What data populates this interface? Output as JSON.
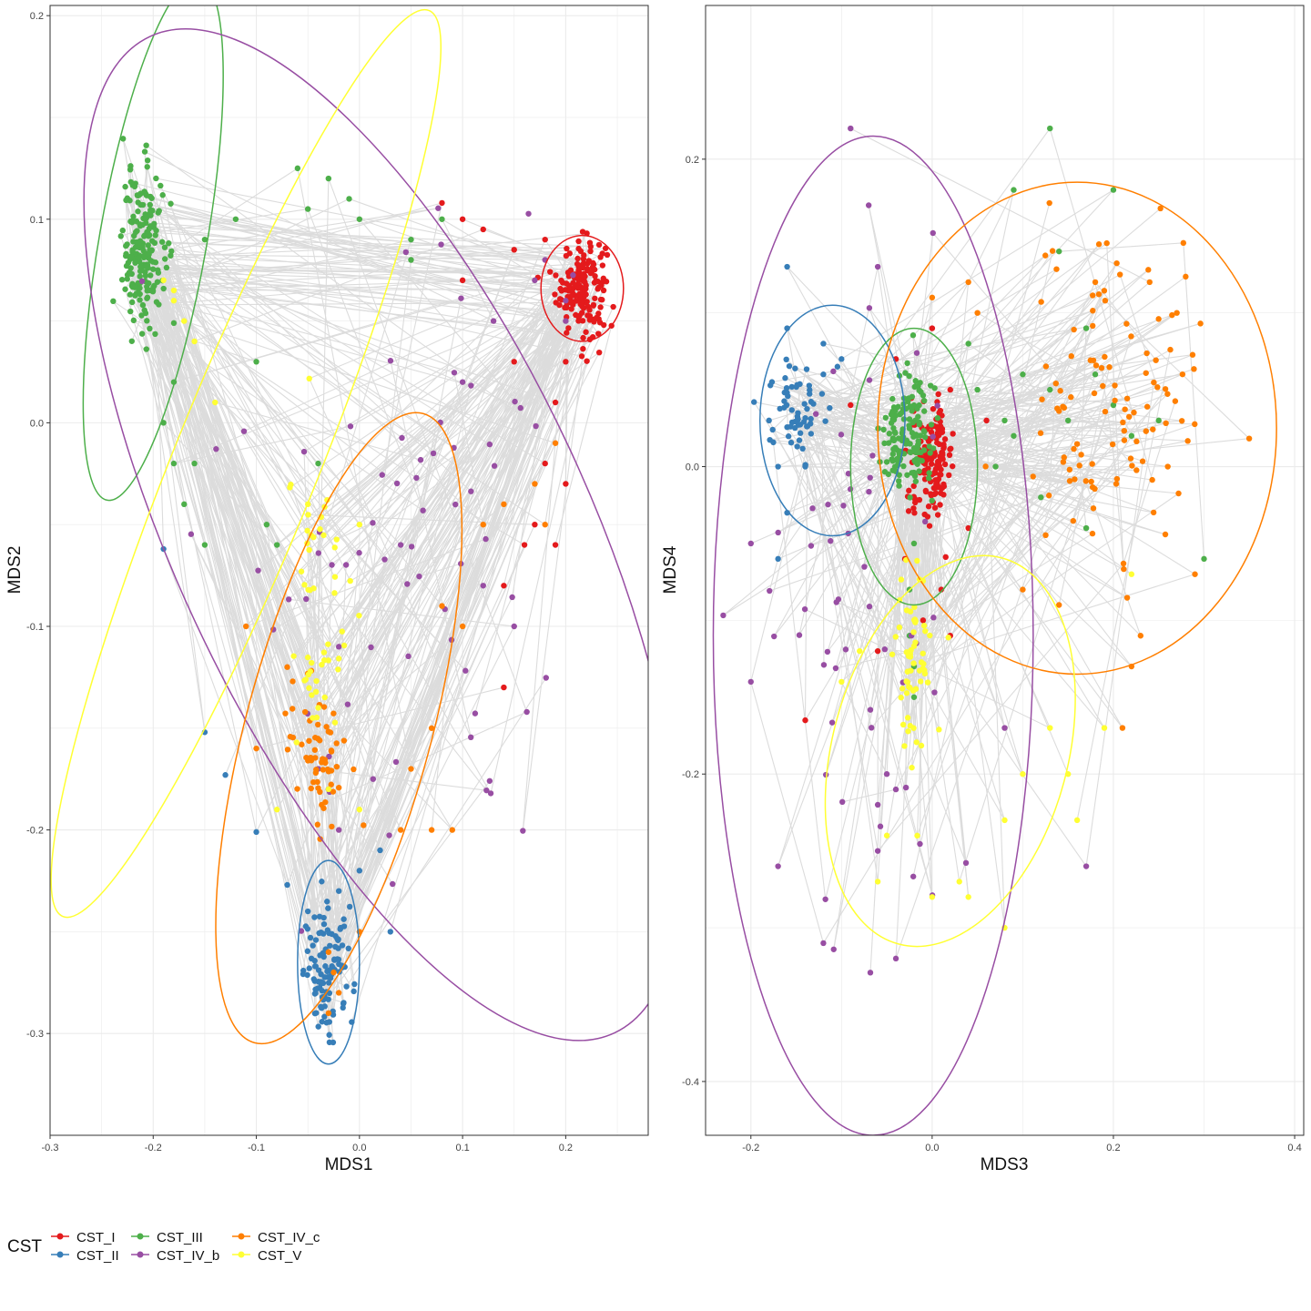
{
  "legend": {
    "title": "CST",
    "entries": [
      {
        "label": "CST_I",
        "color": "#E41A1C"
      },
      {
        "label": "CST_II",
        "color": "#377EB8"
      },
      {
        "label": "CST_III",
        "color": "#4DAF4A"
      },
      {
        "label": "CST_IV_b",
        "color": "#984EA3"
      },
      {
        "label": "CST_IV_c",
        "color": "#FF7F00"
      },
      {
        "label": "CST_V",
        "color": "#FFFF33"
      }
    ]
  },
  "chart_data": [
    {
      "type": "scatter",
      "xlabel": "MDS1",
      "ylabel": "MDS2",
      "xlim": [
        -0.3,
        0.28
      ],
      "ylim": [
        -0.35,
        0.205
      ],
      "xticks": [
        -0.3,
        -0.2,
        -0.1,
        0.0,
        0.1,
        0.2
      ],
      "xtick_labels": [
        "-0.3",
        "-0.2",
        "-0.1",
        "0.0",
        "0.1",
        "0.2"
      ],
      "yticks": [
        -0.3,
        -0.2,
        -0.1,
        0.0,
        0.1,
        0.2
      ],
      "ytick_labels": [
        "-0.3",
        "-0.2",
        "-0.1",
        "0.0",
        "0.1",
        "0.2"
      ],
      "grid": true,
      "connecting_lines": "gray lines link sequential samples",
      "series": [
        {
          "name": "CST_I",
          "center": [
            0.215,
            0.067
          ],
          "spread": [
            0.012,
            0.012
          ],
          "count": 170,
          "extra_points": [
            [
              0.18,
              0.09
            ],
            [
              0.15,
              0.085
            ],
            [
              0.12,
              0.095
            ],
            [
              0.1,
              0.1
            ],
            [
              0.2,
              0.03
            ],
            [
              0.19,
              0.01
            ],
            [
              0.18,
              -0.02
            ],
            [
              0.17,
              -0.05
            ],
            [
              0.15,
              0.03
            ],
            [
              0.2,
              -0.03
            ],
            [
              0.14,
              -0.08
            ],
            [
              0.19,
              -0.06
            ],
            [
              0.1,
              0.07
            ],
            [
              0.14,
              -0.13
            ],
            [
              0.16,
              -0.06
            ],
            [
              0.08,
              0.108
            ]
          ],
          "ellipse": {
            "center": [
              0.216,
              0.066
            ],
            "rx": 0.04,
            "ry": 0.026,
            "angle": 0
          }
        },
        {
          "name": "CST_II",
          "center": [
            -0.03,
            -0.27
          ],
          "spread": [
            0.012,
            0.015
          ],
          "count": 110,
          "extra_points": [
            [
              -0.05,
              -0.24
            ],
            [
              -0.02,
              -0.23
            ],
            [
              0.0,
              -0.22
            ],
            [
              0.03,
              -0.25
            ],
            [
              -0.07,
              -0.227
            ],
            [
              -0.15,
              -0.152
            ],
            [
              -0.13,
              -0.173
            ],
            [
              -0.19,
              -0.062
            ],
            [
              -0.1,
              -0.201
            ],
            [
              0.02,
              -0.21
            ]
          ],
          "ellipse": {
            "center": [
              -0.03,
              -0.265
            ],
            "rx": 0.03,
            "ry": 0.05,
            "angle": 0
          }
        },
        {
          "name": "CST_III",
          "center": [
            -0.21,
            0.085
          ],
          "spread": [
            0.01,
            0.02
          ],
          "count": 190,
          "extra_points": [
            [
              -0.18,
              0.02
            ],
            [
              -0.19,
              0.0
            ],
            [
              -0.18,
              -0.02
            ],
            [
              -0.17,
              -0.04
            ],
            [
              -0.15,
              0.09
            ],
            [
              -0.12,
              0.1
            ],
            [
              -0.05,
              0.105
            ],
            [
              0.0,
              0.1
            ],
            [
              0.05,
              0.09
            ],
            [
              -0.03,
              0.12
            ],
            [
              -0.06,
              0.125
            ],
            [
              -0.1,
              0.03
            ],
            [
              -0.09,
              -0.05
            ],
            [
              -0.08,
              -0.06
            ],
            [
              -0.15,
              -0.06
            ],
            [
              -0.16,
              -0.02
            ],
            [
              -0.04,
              -0.02
            ],
            [
              0.05,
              0.08
            ],
            [
              -0.01,
              0.11
            ],
            [
              0.08,
              0.1
            ]
          ],
          "ellipse": {
            "center": [
              -0.2,
              0.09
            ],
            "rx": 0.052,
            "ry": 0.13,
            "angle": -10
          }
        },
        {
          "name": "CST_IV_b",
          "center": [
            0.05,
            -0.05
          ],
          "spread": [
            0.09,
            0.09
          ],
          "count": 70,
          "extra_points": [
            [
              0.2,
              0.06
            ],
            [
              0.17,
              0.07
            ],
            [
              0.1,
              0.02
            ],
            [
              -0.03,
              -0.18
            ],
            [
              -0.02,
              -0.2
            ],
            [
              -0.04,
              -0.17
            ],
            [
              -0.02,
              -0.11
            ],
            [
              0.04,
              -0.06
            ],
            [
              0.12,
              -0.08
            ],
            [
              0.15,
              -0.1
            ],
            [
              0.2,
              0.05
            ],
            [
              0.18,
              0.08
            ],
            [
              0.13,
              0.05
            ]
          ],
          "ellipse": {
            "center": [
              0.022,
              -0.055
            ],
            "rx": 0.2,
            "ry": 0.27,
            "angle": 25
          }
        },
        {
          "name": "CST_IV_c",
          "center": [
            -0.04,
            -0.16
          ],
          "spread": [
            0.015,
            0.018
          ],
          "count": 60,
          "extra_points": [
            [
              -0.03,
              -0.26
            ],
            [
              -0.02,
              -0.28
            ],
            [
              -0.03,
              -0.29
            ],
            [
              0.0,
              -0.25
            ],
            [
              -0.025,
              -0.27
            ],
            [
              -0.1,
              -0.16
            ],
            [
              -0.07,
              -0.12
            ],
            [
              0.05,
              -0.17
            ],
            [
              0.08,
              -0.09
            ],
            [
              0.1,
              -0.1
            ],
            [
              0.12,
              -0.05
            ],
            [
              0.14,
              -0.04
            ],
            [
              0.17,
              -0.03
            ],
            [
              0.18,
              -0.05
            ],
            [
              0.19,
              -0.01
            ],
            [
              0.07,
              -0.15
            ],
            [
              -0.11,
              -0.1
            ],
            [
              0.04,
              -0.2
            ],
            [
              0.09,
              -0.2
            ],
            [
              0.07,
              -0.2
            ]
          ],
          "ellipse": {
            "center": [
              -0.02,
              -0.15
            ],
            "rx": 0.09,
            "ry": 0.16,
            "angle": -15
          }
        },
        {
          "name": "CST_V",
          "center": [
            -0.04,
            -0.09
          ],
          "spread": [
            0.015,
            0.04
          ],
          "count": 50,
          "extra_points": [
            [
              -0.19,
              0.07
            ],
            [
              -0.18,
              0.065
            ],
            [
              -0.17,
              0.05
            ],
            [
              -0.16,
              0.04
            ],
            [
              -0.18,
              0.06
            ],
            [
              -0.14,
              0.01
            ],
            [
              -0.08,
              -0.19
            ],
            [
              0.0,
              -0.19
            ],
            [
              -0.03,
              -0.18
            ],
            [
              -0.04,
              -0.14
            ],
            [
              0.0,
              -0.05
            ],
            [
              -0.05,
              -0.04
            ]
          ],
          "ellipse": {
            "center": [
              -0.11,
              -0.02
            ],
            "rx": 0.07,
            "ry": 0.24,
            "angle": -22
          }
        }
      ]
    },
    {
      "type": "scatter",
      "xlabel": "MDS3",
      "ylabel": "MDS4",
      "xlim": [
        -0.25,
        0.41
      ],
      "ylim": [
        -0.435,
        0.3
      ],
      "xticks": [
        -0.2,
        0.0,
        0.2,
        0.4
      ],
      "xtick_labels": [
        "-0.2",
        "0.0",
        "0.2",
        "0.4"
      ],
      "yticks": [
        -0.4,
        -0.2,
        0.0,
        0.2
      ],
      "ytick_labels": [
        "-0.4",
        "-0.2",
        "0.0",
        "0.2"
      ],
      "grid": true,
      "connecting_lines": "gray lines link sequential samples",
      "series": [
        {
          "name": "CST_I",
          "center": [
            0.0,
            0.005
          ],
          "spread": [
            0.012,
            0.018
          ],
          "count": 150,
          "extra_points": [
            [
              0.02,
              0.05
            ],
            [
              -0.04,
              0.07
            ],
            [
              -0.03,
              -0.06
            ],
            [
              0.01,
              -0.08
            ],
            [
              0.02,
              -0.11
            ],
            [
              -0.01,
              -0.1
            ],
            [
              -0.14,
              -0.165
            ],
            [
              -0.06,
              -0.12
            ],
            [
              0.04,
              -0.04
            ],
            [
              0.06,
              0.03
            ],
            [
              -0.09,
              0.04
            ],
            [
              0.0,
              0.09
            ]
          ],
          "ellipse": null
        },
        {
          "name": "CST_II",
          "center": [
            -0.15,
            0.04
          ],
          "spread": [
            0.015,
            0.015
          ],
          "count": 60,
          "extra_points": [
            [
              -0.17,
              0.0
            ],
            [
              -0.16,
              -0.03
            ],
            [
              -0.17,
              -0.06
            ],
            [
              -0.16,
              0.09
            ],
            [
              -0.16,
              0.13
            ],
            [
              -0.1,
              0.07
            ],
            [
              -0.12,
              0.06
            ],
            [
              -0.14,
              0.0
            ],
            [
              -0.18,
              0.03
            ],
            [
              -0.12,
              0.08
            ]
          ],
          "ellipse": {
            "center": [
              -0.11,
              0.03
            ],
            "rx": 0.08,
            "ry": 0.075,
            "angle": 0
          }
        },
        {
          "name": "CST_III",
          "center": [
            -0.03,
            0.02
          ],
          "spread": [
            0.015,
            0.02
          ],
          "count": 150,
          "extra_points": [
            [
              -0.02,
              -0.05
            ],
            [
              -0.025,
              -0.08
            ],
            [
              -0.025,
              -0.11
            ],
            [
              -0.02,
              -0.13
            ],
            [
              -0.02,
              -0.15
            ],
            [
              0.05,
              0.05
            ],
            [
              0.08,
              0.03
            ],
            [
              0.1,
              0.06
            ],
            [
              0.13,
              0.05
            ],
            [
              0.15,
              0.03
            ],
            [
              0.18,
              0.06
            ],
            [
              0.2,
              0.04
            ],
            [
              0.22,
              0.02
            ],
            [
              0.12,
              -0.02
            ],
            [
              0.17,
              -0.04
            ],
            [
              0.13,
              0.22
            ],
            [
              0.09,
              0.18
            ],
            [
              0.2,
              0.18
            ],
            [
              0.3,
              -0.06
            ],
            [
              0.14,
              0.14
            ],
            [
              0.04,
              0.08
            ],
            [
              0.07,
              0.0
            ],
            [
              0.09,
              0.02
            ],
            [
              0.25,
              0.03
            ],
            [
              0.17,
              0.09
            ]
          ],
          "ellipse": {
            "center": [
              -0.02,
              0.0
            ],
            "rx": 0.07,
            "ry": 0.09,
            "angle": 0
          }
        },
        {
          "name": "CST_IV_b",
          "center": [
            -0.08,
            -0.1
          ],
          "spread": [
            0.06,
            0.1
          ],
          "count": 55,
          "extra_points": [
            [
              -0.09,
              0.22
            ],
            [
              -0.07,
              0.17
            ],
            [
              -0.06,
              0.13
            ],
            [
              -0.2,
              -0.14
            ],
            [
              -0.17,
              -0.26
            ],
            [
              -0.06,
              -0.22
            ],
            [
              -0.05,
              -0.2
            ],
            [
              -0.04,
              -0.21
            ],
            [
              -0.12,
              -0.31
            ],
            [
              -0.04,
              -0.32
            ],
            [
              0.17,
              -0.26
            ],
            [
              0.08,
              -0.17
            ],
            [
              -0.2,
              -0.05
            ],
            [
              -0.06,
              -0.25
            ]
          ],
          "ellipse": {
            "center": [
              -0.065,
              -0.11
            ],
            "rx": 0.1765,
            "ry": 0.325,
            "angle": 0
          }
        },
        {
          "name": "CST_IV_c",
          "center": [
            0.2,
            0.04
          ],
          "spread": [
            0.05,
            0.06
          ],
          "count": 110,
          "extra_points": [
            [
              0.22,
              -0.13
            ],
            [
              0.21,
              -0.17
            ],
            [
              0.23,
              -0.11
            ],
            [
              0.29,
              -0.07
            ],
            [
              0.27,
              0.1
            ],
            [
              0.24,
              0.12
            ],
            [
              0.18,
              0.12
            ],
            [
              0.26,
              0.0
            ],
            [
              0.1,
              -0.08
            ],
            [
              0.05,
              0.1
            ],
            [
              0.04,
              0.12
            ],
            [
              0.0,
              0.11
            ],
            [
              0.14,
              -0.09
            ]
          ],
          "ellipse": {
            "center": [
              0.16,
              0.025
            ],
            "rx": 0.22,
            "ry": 0.16,
            "angle": 0
          }
        },
        {
          "name": "CST_V",
          "center": [
            -0.02,
            -0.13
          ],
          "spread": [
            0.01,
            0.03
          ],
          "count": 60,
          "extra_points": [
            [
              -0.1,
              -0.14
            ],
            [
              -0.08,
              -0.12
            ],
            [
              -0.05,
              -0.24
            ],
            [
              0.08,
              -0.23
            ],
            [
              0.1,
              -0.2
            ],
            [
              0.13,
              -0.17
            ],
            [
              0.15,
              -0.2
            ],
            [
              0.16,
              -0.23
            ],
            [
              0.08,
              -0.3
            ],
            [
              0.03,
              -0.27
            ],
            [
              -0.06,
              -0.27
            ],
            [
              0.19,
              -0.17
            ],
            [
              0.22,
              -0.07
            ],
            [
              0.04,
              -0.28
            ],
            [
              0.0,
              -0.28
            ]
          ],
          "ellipse": {
            "center": [
              0.02,
              -0.185
            ],
            "rx": 0.13,
            "ry": 0.13,
            "angle": -15
          }
        }
      ]
    }
  ]
}
